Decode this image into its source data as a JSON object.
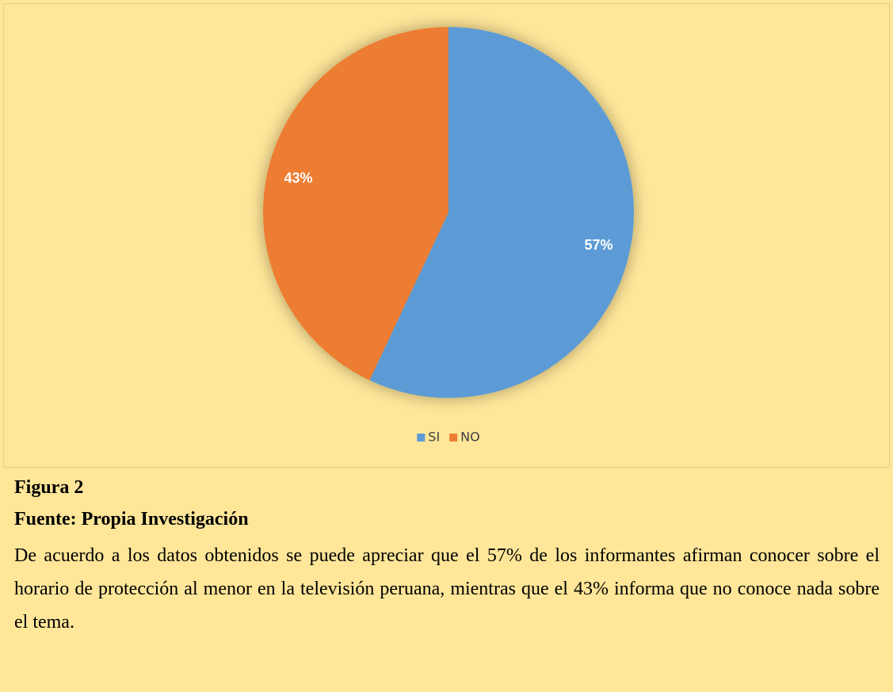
{
  "chart_data": {
    "type": "pie",
    "categories": [
      "SI",
      "NO"
    ],
    "values": [
      57,
      43
    ],
    "value_labels": [
      "57%",
      "43%"
    ],
    "colors": [
      "#5b9bd5",
      "#ed7d31"
    ],
    "legend": "bottom"
  },
  "caption": {
    "figure": "Figura 2",
    "source": "Fuente: Propia Investigación",
    "text": "De acuerdo a los datos obtenidos se puede apreciar que el 57% de  los informantes afirman conocer sobre el horario de protección al menor en la televisión peruana, mientras que el 43% informa que no conoce nada sobre el tema."
  }
}
